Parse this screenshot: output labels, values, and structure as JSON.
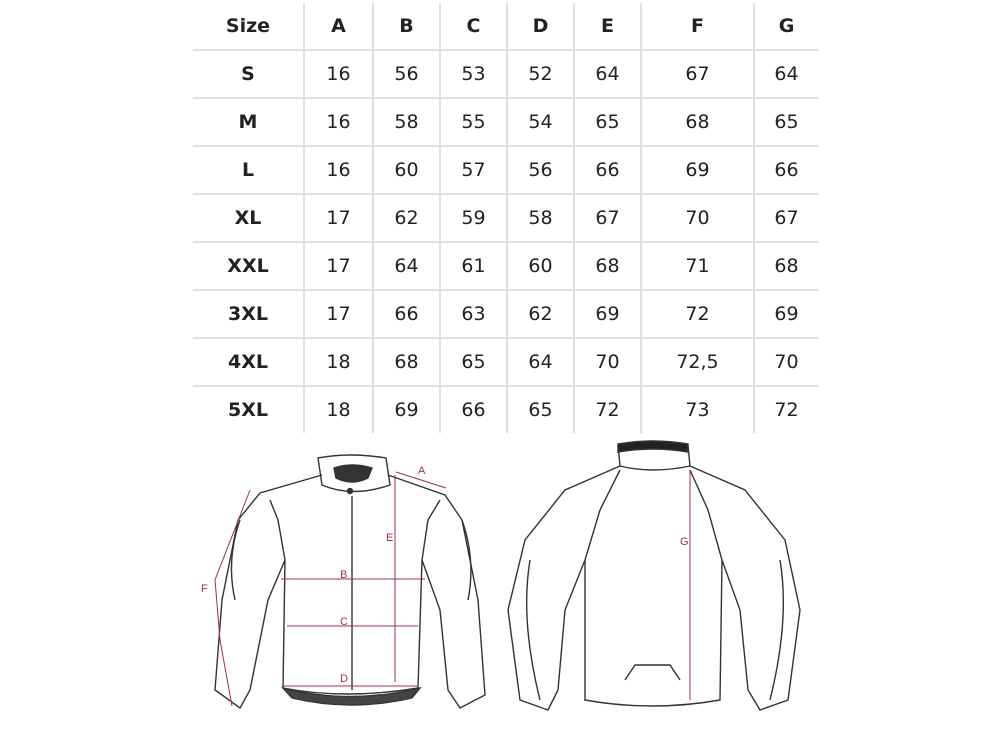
{
  "table": {
    "headers": [
      "Size",
      "A",
      "B",
      "C",
      "D",
      "E",
      "F",
      "G"
    ],
    "rows": [
      [
        "S",
        "16",
        "56",
        "53",
        "52",
        "64",
        "67",
        "64"
      ],
      [
        "M",
        "16",
        "58",
        "55",
        "54",
        "65",
        "68",
        "65"
      ],
      [
        "L",
        "16",
        "60",
        "57",
        "56",
        "66",
        "69",
        "66"
      ],
      [
        "XL",
        "17",
        "62",
        "59",
        "58",
        "67",
        "70",
        "67"
      ],
      [
        "XXL",
        "17",
        "64",
        "61",
        "60",
        "68",
        "71",
        "68"
      ],
      [
        "3XL",
        "17",
        "66",
        "63",
        "62",
        "69",
        "72",
        "69"
      ],
      [
        "4XL",
        "18",
        "68",
        "65",
        "64",
        "70",
        "72,5",
        "70"
      ],
      [
        "5XL",
        "18",
        "69",
        "66",
        "65",
        "72",
        "73",
        "72"
      ]
    ]
  },
  "diagram": {
    "labels": {
      "A": "A",
      "B": "B",
      "C": "C",
      "D": "D",
      "E": "E",
      "F": "F",
      "G": "G"
    },
    "measure_color": "#a0304a",
    "line_color": "#333333"
  }
}
